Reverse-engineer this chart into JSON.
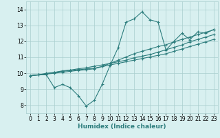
{
  "xlabel": "Humidex (Indice chaleur)",
  "bg_color": "#d8f0f0",
  "line_color": "#2d7d7d",
  "grid_color": "#aacece",
  "xlim": [
    -0.5,
    23.5
  ],
  "ylim": [
    7.5,
    14.5
  ],
  "xticks": [
    0,
    1,
    2,
    3,
    4,
    5,
    6,
    7,
    8,
    9,
    10,
    11,
    12,
    13,
    14,
    15,
    16,
    17,
    18,
    19,
    20,
    21,
    22,
    23
  ],
  "yticks": [
    8,
    9,
    10,
    11,
    12,
    13,
    14
  ],
  "series": [
    [
      9.85,
      9.9,
      9.9,
      9.1,
      9.3,
      9.1,
      8.6,
      7.95,
      8.3,
      9.3,
      10.5,
      11.6,
      13.2,
      13.4,
      13.85,
      13.35,
      13.2,
      11.45,
      12.0,
      12.5,
      12.1,
      12.6,
      12.5,
      12.75
    ],
    [
      9.85,
      9.9,
      10.0,
      10.05,
      10.12,
      10.18,
      10.22,
      10.27,
      10.32,
      10.42,
      10.52,
      10.62,
      10.72,
      10.82,
      10.92,
      11.02,
      11.12,
      11.22,
      11.37,
      11.52,
      11.67,
      11.82,
      11.97,
      12.12
    ],
    [
      9.85,
      9.9,
      9.95,
      10.0,
      10.06,
      10.12,
      10.18,
      10.22,
      10.28,
      10.42,
      10.62,
      10.82,
      11.02,
      11.22,
      11.38,
      11.52,
      11.67,
      11.78,
      11.97,
      12.12,
      12.27,
      12.42,
      12.57,
      12.72
    ],
    [
      9.85,
      9.9,
      9.95,
      10.05,
      10.15,
      10.2,
      10.28,
      10.34,
      10.44,
      10.52,
      10.62,
      10.72,
      10.82,
      10.97,
      11.07,
      11.17,
      11.32,
      11.47,
      11.62,
      11.77,
      11.97,
      12.12,
      12.27,
      12.42
    ]
  ]
}
